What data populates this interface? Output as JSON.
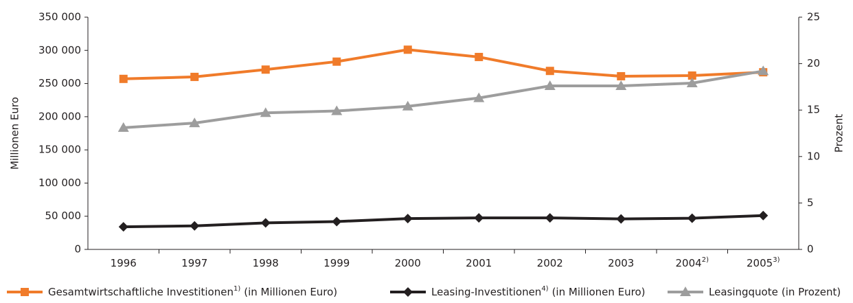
{
  "chart_data": {
    "type": "line",
    "categories": [
      "1996",
      "1997",
      "1998",
      "1999",
      "2000",
      "2001",
      "2002",
      "2003",
      "2004",
      "2005"
    ],
    "category_notes": [
      null,
      null,
      null,
      null,
      null,
      null,
      null,
      null,
      "2)",
      "3)"
    ],
    "ylabel": "Millionen Euro",
    "y2label": "Prozent",
    "ylim": [
      0,
      350000
    ],
    "yticks": [
      0,
      {
        "value": 50000,
        "label": "50 000"
      },
      {
        "value": 100000,
        "label": "100 000"
      },
      {
        "value": 150000,
        "label": "150 000"
      },
      {
        "value": 200000,
        "label": "200 000"
      },
      {
        "value": 250000,
        "label": "250 000"
      },
      {
        "value": 300000,
        "label": "300 000"
      },
      {
        "value": 350000,
        "label": "350 000"
      }
    ],
    "y2lim": [
      0,
      25
    ],
    "y2ticks": [
      0,
      5,
      10,
      15,
      20,
      25
    ],
    "grid": false,
    "legend": "bottom",
    "series": [
      {
        "name": "Gesamtwirtschaftliche Investitionen",
        "note": "1)",
        "unit": "(in Millionen Euro)",
        "color": "#f07b2a",
        "marker": "square",
        "values": [
          257000,
          260000,
          271000,
          283000,
          301000,
          290000,
          269000,
          261000,
          262000,
          267000
        ]
      },
      {
        "name": "Leasing-Investitionen",
        "note": "4)",
        "unit": "(in Millionen Euro)",
        "color": "#231f20",
        "marker": "diamond",
        "values": [
          34000,
          35500,
          40000,
          42000,
          46500,
          47500,
          47500,
          46000,
          47000,
          51000
        ]
      },
      {
        "name": "Leasingquote",
        "unit": "(in Prozent)",
        "color": "#9d9d9d",
        "marker": "triangle",
        "axis": "y2",
        "values": [
          13.1,
          13.6,
          14.7,
          14.9,
          15.4,
          16.3,
          17.6,
          17.6,
          17.9,
          19.2
        ]
      }
    ]
  }
}
